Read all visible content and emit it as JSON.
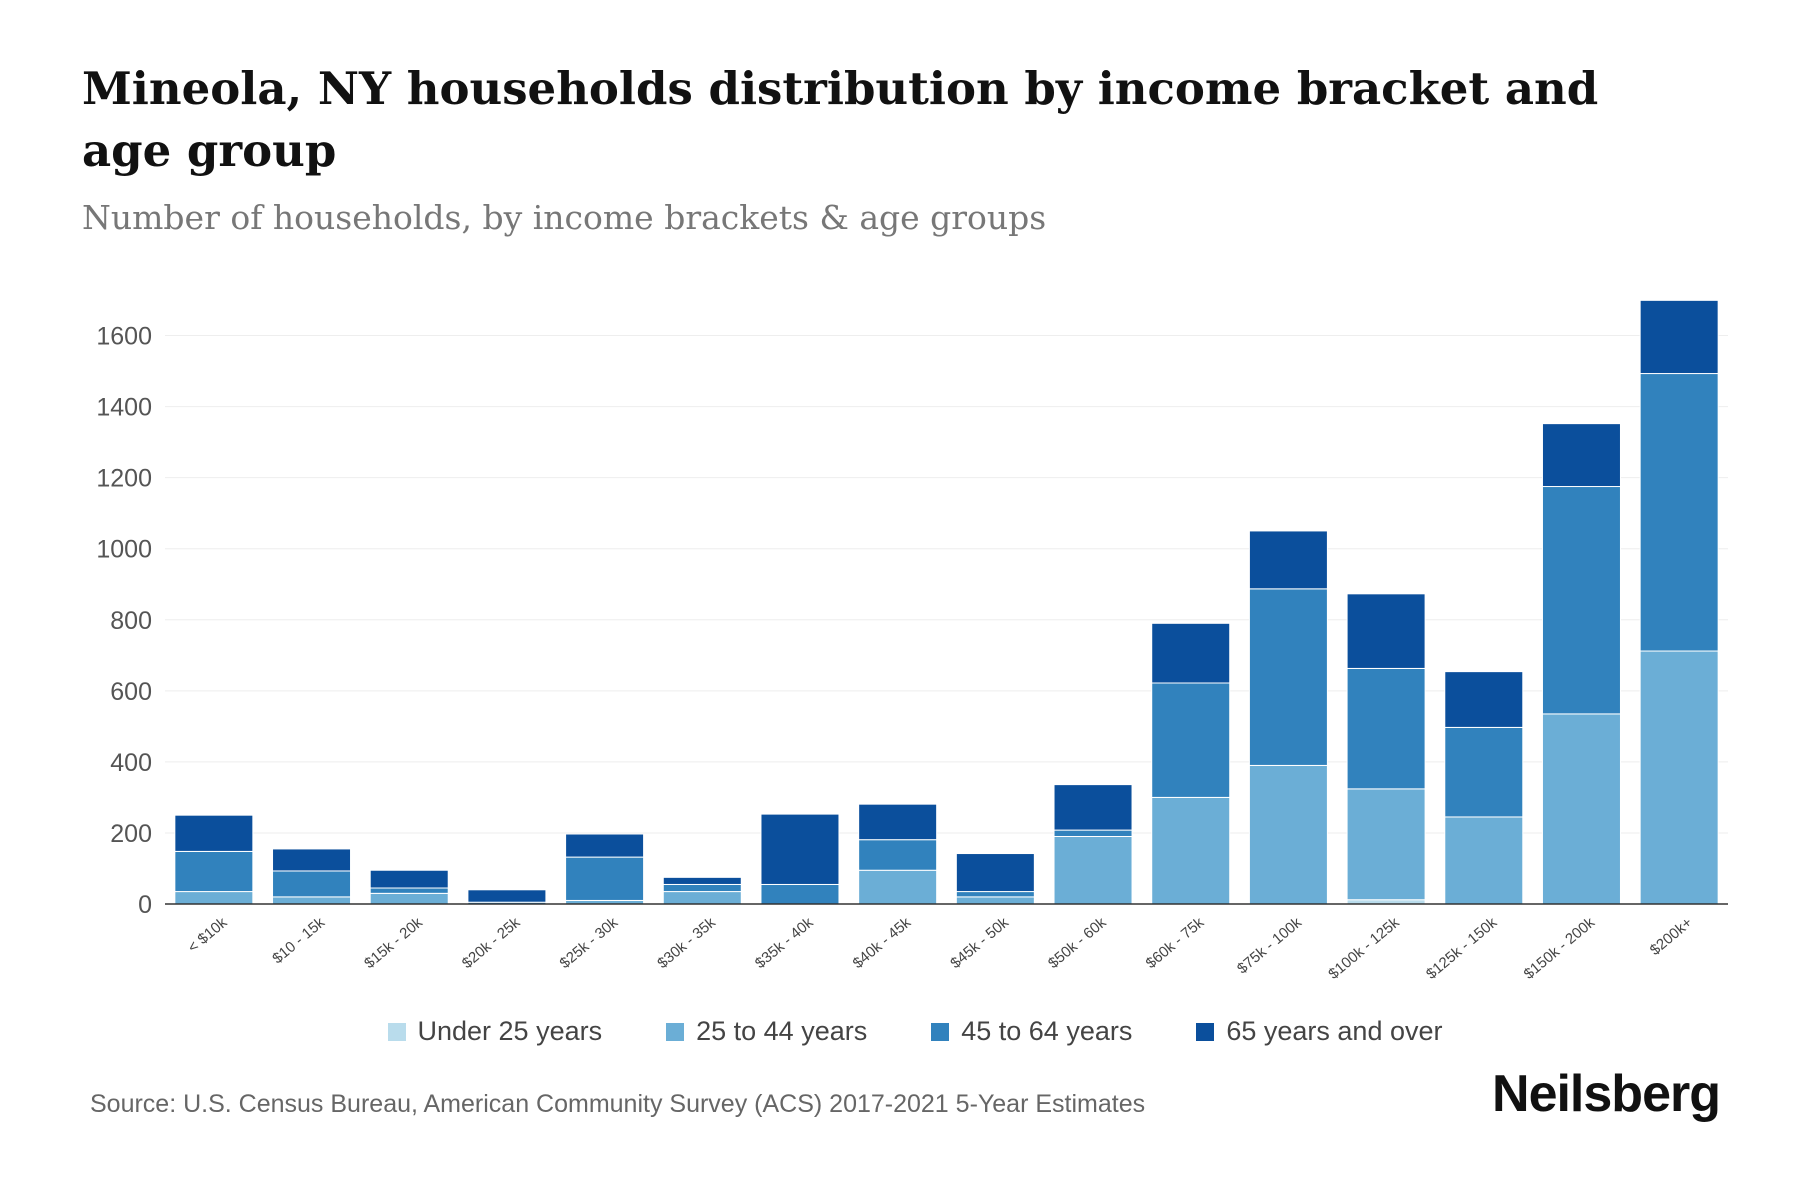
{
  "header": {
    "title": "Mineola, NY households distribution by income bracket and age group",
    "subtitle": "Number of households, by income brackets & age groups"
  },
  "footer": {
    "source": "Source: U.S. Census Bureau, American Community Survey (ACS) 2017-2021 5-Year Estimates",
    "brand": "Neilsberg"
  },
  "colors": {
    "under_25": "#b9dcec",
    "age_25_44": "#6baed6",
    "age_45_64": "#3182bd",
    "age_65_plus": "#0b4f9c",
    "gridline": "#eeeeee",
    "axis": "#333333"
  },
  "chart_data": {
    "type": "bar",
    "stacked": true,
    "title": "Mineola, NY households distribution by income bracket and age group",
    "subtitle": "Number of households, by income brackets & age groups",
    "xlabel": "",
    "ylabel": "",
    "ylim": [
      0,
      1700
    ],
    "yticks": [
      0,
      200,
      400,
      600,
      800,
      1000,
      1200,
      1400,
      1600
    ],
    "grid": true,
    "legend_position": "bottom",
    "categories": [
      "< $10k",
      "$10 - 15k",
      "$15k - 20k",
      "$20k - 25k",
      "$25k - 30k",
      "$30k - 35k",
      "$35k - 40k",
      "$40k - 45k",
      "$45k - 50k",
      "$50k - 60k",
      "$60k - 75k",
      "$75k - 100k",
      "$100k - 125k",
      "$125k - 150k",
      "$150k - 200k",
      "$200k+"
    ],
    "series": [
      {
        "name": "Under 25 years",
        "values": [
          0,
          0,
          0,
          0,
          0,
          0,
          0,
          0,
          0,
          0,
          0,
          0,
          12,
          0,
          0,
          0
        ]
      },
      {
        "name": "25 to 44 years",
        "values": [
          35,
          20,
          30,
          0,
          10,
          35,
          0,
          95,
          20,
          190,
          300,
          390,
          312,
          245,
          535,
          712
        ]
      },
      {
        "name": "45 to 64 years",
        "values": [
          113,
          73,
          15,
          5,
          122,
          20,
          55,
          86,
          15,
          18,
          322,
          497,
          339,
          252,
          640,
          781
        ]
      },
      {
        "name": "65 years and over",
        "values": [
          102,
          62,
          50,
          35,
          65,
          20,
          198,
          100,
          107,
          128,
          168,
          163,
          210,
          157,
          177,
          206
        ]
      }
    ]
  }
}
